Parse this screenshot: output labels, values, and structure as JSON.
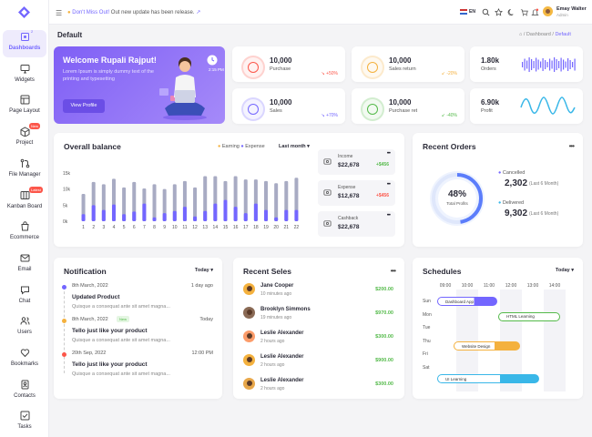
{
  "topbar": {
    "notice_prefix": "Don't Miss Out!",
    "notice_text": "Out new update has been release.",
    "language": "EN",
    "user_name": "Emay Walter",
    "user_role": "Admin"
  },
  "sidebar": {
    "items": [
      {
        "label": "Dashboards",
        "icon": "home-icon",
        "badge": "2"
      },
      {
        "label": "Widgets",
        "icon": "monitor-icon"
      },
      {
        "label": "Page Layout",
        "icon": "layout-icon"
      },
      {
        "label": "Project",
        "icon": "box-icon",
        "badge": "New"
      },
      {
        "label": "File Manager",
        "icon": "git-pull-icon"
      },
      {
        "label": "Kanban Board",
        "icon": "board-icon",
        "badge": "Latest"
      },
      {
        "label": "Ecommerce",
        "icon": "shopping-bag-icon"
      },
      {
        "label": "Email",
        "icon": "mail-icon"
      },
      {
        "label": "Chat",
        "icon": "chat-icon"
      },
      {
        "label": "Users",
        "icon": "users-icon"
      },
      {
        "label": "Bookmarks",
        "icon": "heart-icon"
      },
      {
        "label": "Contacts",
        "icon": "contacts-icon"
      },
      {
        "label": "Tasks",
        "icon": "tasks-icon"
      }
    ]
  },
  "page": {
    "title": "Default",
    "crumb_parent": "Dashboard",
    "crumb_current": "Default"
  },
  "welcome": {
    "title": "Welcome Rupali Rajput!",
    "text": "Lorem Ipsum is simply dummy text of the printing and typesetting",
    "button": "View Profile",
    "time": "2:15 PM"
  },
  "stats": [
    {
      "value": "10,000",
      "label": "Purchase",
      "change": "+50%",
      "color": "#fc564a"
    },
    {
      "value": "10,000",
      "label": "Sales return",
      "change": "-20%",
      "color": "#f4b13e"
    },
    {
      "value": "10,000",
      "label": "Sales",
      "change": "+70%",
      "color": "#7366ff"
    },
    {
      "value": "10,000",
      "label": "Purchase ret",
      "change": "-40%",
      "color": "#54ba4a"
    }
  ],
  "minis": [
    {
      "value": "1.80k",
      "label": "Orders"
    },
    {
      "value": "6.90k",
      "label": "Profit"
    }
  ],
  "balance": {
    "title": "Overall balance",
    "legend_earning": "Earning",
    "legend_expense": "Expense",
    "filter": "Last month",
    "side": [
      {
        "label": "Income",
        "value": "$22,678",
        "change": "+$456",
        "icon": "download-icon"
      },
      {
        "label": "Expense",
        "value": "$12,678",
        "change": "+$456",
        "icon": "money-icon"
      },
      {
        "label": "Cashback",
        "value": "$22,678",
        "change": "",
        "icon": "cashback-icon"
      }
    ]
  },
  "chart_data": {
    "type": "bar",
    "categories": [
      "1",
      "2",
      "3",
      "4",
      "5",
      "6",
      "7",
      "8",
      "9",
      "10",
      "11",
      "12",
      "13",
      "14",
      "15",
      "16",
      "17",
      "18",
      "19",
      "20",
      "21",
      "22"
    ],
    "y_ticks": [
      "15k",
      "10k",
      "5k",
      "0k"
    ],
    "ylim": [
      0,
      15
    ],
    "series": [
      {
        "name": "Earning",
        "values": [
          2.2,
          5,
          3.5,
          5.2,
          2.2,
          3,
          5.5,
          1.2,
          2.5,
          3.2,
          4.5,
          1.5,
          3.2,
          5.5,
          6.6,
          4.5,
          2.5,
          5.5,
          3.5,
          1.2,
          3.5,
          3.5
        ]
      },
      {
        "name": "Expense",
        "values": [
          8.5,
          12.2,
          11.5,
          13.2,
          10.5,
          12.2,
          10.2,
          11.5,
          10,
          11.5,
          12.5,
          10.5,
          14,
          14,
          12.5,
          14,
          13,
          13,
          12.5,
          11.8,
          12.5,
          13.5
        ]
      }
    ]
  },
  "orders": {
    "title": "Recent Orders",
    "percent": "48%",
    "percent_label": "Total Profits",
    "cancelled_label": "Cancelled",
    "cancelled_value": "2,302",
    "cancelled_note": "(Last 6 Month)",
    "delivered_label": "Delivered",
    "delivered_value": "9,302",
    "delivered_note": "(Last 6 Month)"
  },
  "notification": {
    "title": "Notification",
    "filter": "Today",
    "items": [
      {
        "date": "8th March, 2022",
        "time": "1 day ago",
        "title": "Updated Product",
        "text": "Quisque a consequat ante sit amet magna...",
        "badge": ""
      },
      {
        "date": "8th March, 2022",
        "time": "Today",
        "title": "Tello just like your product",
        "text": "Quisque a consequat ante sit amet magna...",
        "badge": "New"
      },
      {
        "date": "20th Sep, 2022",
        "time": "12:00 PM",
        "title": "Tello just like your product",
        "text": "Quisque a consequat ante sit amet magna...",
        "badge": ""
      }
    ]
  },
  "sales": {
    "title": "Recent Seles",
    "items": [
      {
        "name": "Jane Cooper",
        "time": "10 minutes ago",
        "amount": "$200.00"
      },
      {
        "name": "Brooklyn Simmons",
        "time": "19 minutes ago",
        "amount": "$970.00"
      },
      {
        "name": "Leslie Alexander",
        "time": "2 hours ago",
        "amount": "$300.00"
      },
      {
        "name": "Leslie Alexander",
        "time": "2 hours ago",
        "amount": "$900.00"
      },
      {
        "name": "Leslie Alexander",
        "time": "2 hours ago",
        "amount": "$300.00"
      }
    ]
  },
  "schedule": {
    "title": "Schedules",
    "filter": "Today",
    "times": [
      "09:00",
      "10:00",
      "11:00",
      "12:00",
      "13:00",
      "14:00"
    ],
    "days": [
      "Sun",
      "Mon",
      "Tue",
      "Thu",
      "Fri",
      "Sat"
    ],
    "events": [
      "Dashboard App",
      "HTML Learning",
      "Website Design",
      "UI Learning"
    ]
  }
}
